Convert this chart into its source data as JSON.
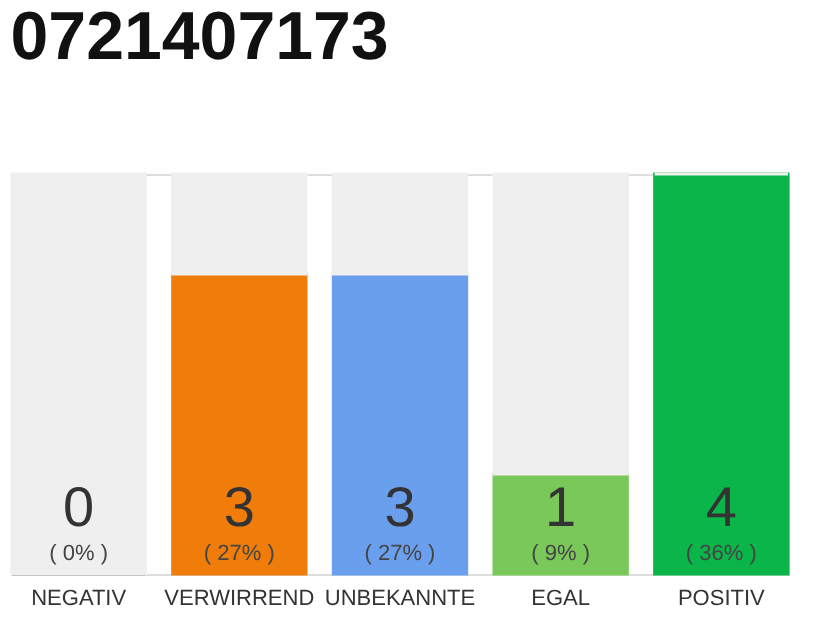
{
  "chart_data": {
    "type": "bar",
    "title": "0721407173",
    "stacked": true,
    "categories": [
      "NEGATIV",
      "VERWIRREND",
      "UNBEKANNTE",
      "EGAL",
      "POSITIV"
    ],
    "series": [
      {
        "colors": [
          "#555555",
          "#f07d0a",
          "#6a9fee",
          "#7ac75a",
          "#0ab54a"
        ],
        "values": [
          0,
          27,
          27,
          9,
          36
        ],
        "value_labels": [
          "( 0% )",
          "( 27% )",
          "( 27% )",
          "( 9% )",
          "( 36% )"
        ]
      },
      {
        "color": "#efefef",
        "values": [
          36,
          9,
          9,
          27,
          0
        ]
      }
    ],
    "annotations": [
      "0",
      "3",
      "3",
      "1",
      "4"
    ],
    "tick_labels": "x"
  }
}
